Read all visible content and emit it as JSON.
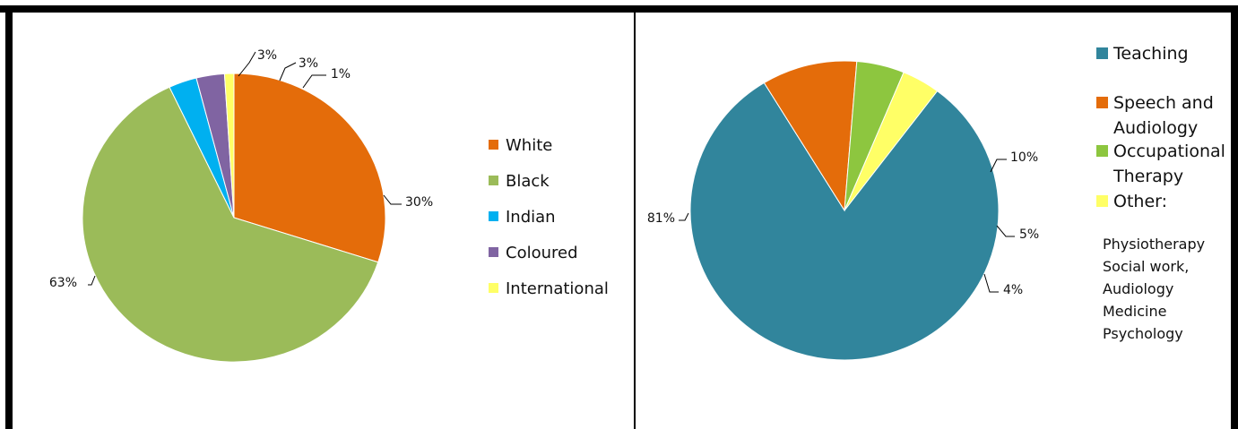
{
  "chart_data": [
    {
      "type": "pie",
      "slices": [
        {
          "label": "White",
          "value": 30,
          "data_label": "30%",
          "color": "#E46C0A"
        },
        {
          "label": "Black",
          "value": 63,
          "data_label": "63%",
          "color": "#9BBB59"
        },
        {
          "label": "Indian",
          "value": 3,
          "data_label": "3%",
          "color": "#00B0F0"
        },
        {
          "label": "Coloured",
          "value": 3,
          "data_label": "3%",
          "color": "#8064A2"
        },
        {
          "label": "International",
          "value": 1,
          "data_label": "1%",
          "color": "#FFFF66"
        }
      ],
      "legend_position": "right"
    },
    {
      "type": "pie",
      "slices": [
        {
          "label": "Teaching",
          "value": 81,
          "data_label": "81%",
          "color": "#31859C"
        },
        {
          "label": "Speech and Audiology",
          "value": 10,
          "data_label": "10%",
          "color": "#E46C0A"
        },
        {
          "label": "Occupational Therapy",
          "value": 5,
          "data_label": "5%",
          "color": "#8DC63F"
        },
        {
          "label": "Other:",
          "value": 4,
          "data_label": "4%",
          "color": "#FFFF66"
        }
      ],
      "legend_position": "right",
      "annotation": [
        "Physiotherapy",
        "Social work,",
        "Audiology",
        "Medicine",
        "Psychology"
      ]
    }
  ]
}
